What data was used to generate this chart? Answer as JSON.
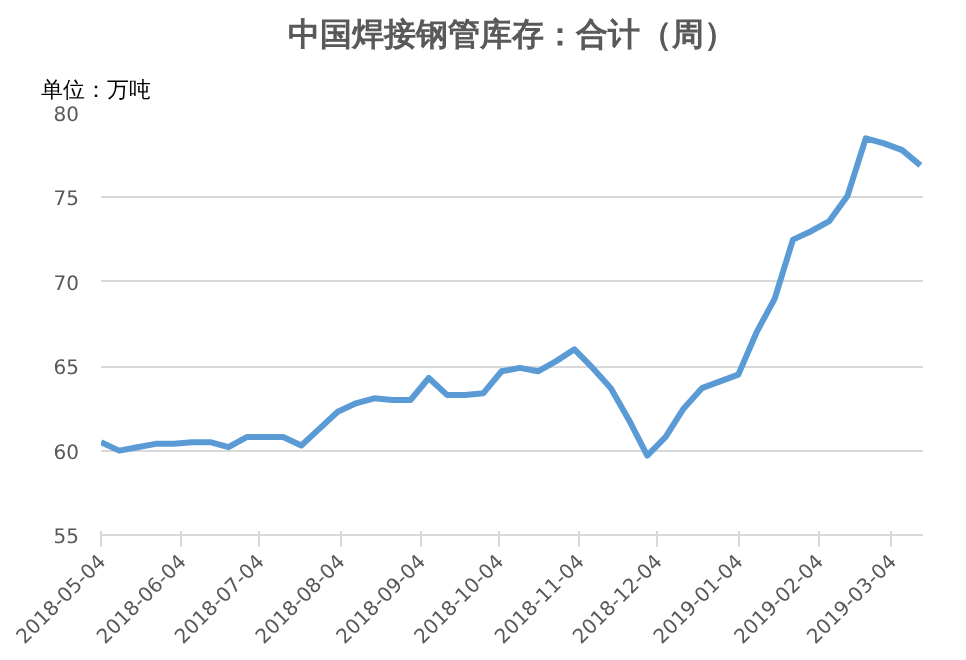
{
  "chart_data": {
    "type": "line",
    "title": "中国焊接钢管库存：合计（周）",
    "annotations": [
      "单位：万吨"
    ],
    "x": [
      "2018-05-04",
      "2018-05-11",
      "2018-05-18",
      "2018-05-25",
      "2018-06-01",
      "2018-06-08",
      "2018-06-15",
      "2018-06-22",
      "2018-06-29",
      "2018-07-06",
      "2018-07-13",
      "2018-07-20",
      "2018-07-27",
      "2018-08-03",
      "2018-08-10",
      "2018-08-17",
      "2018-08-24",
      "2018-08-31",
      "2018-09-07",
      "2018-09-14",
      "2018-09-21",
      "2018-09-28",
      "2018-10-05",
      "2018-10-12",
      "2018-10-19",
      "2018-10-26",
      "2018-11-02",
      "2018-11-09",
      "2018-11-16",
      "2018-11-23",
      "2018-11-30",
      "2018-12-07",
      "2018-12-14",
      "2018-12-21",
      "2018-12-28",
      "2019-01-04",
      "2019-01-11",
      "2019-01-18",
      "2019-01-25",
      "2019-02-01",
      "2019-02-08",
      "2019-02-15",
      "2019-02-22",
      "2019-03-01",
      "2019-03-08",
      "2019-03-15"
    ],
    "series": [
      {
        "color": "#5b9bd5",
        "values": [
          60.5,
          60.0,
          60.2,
          60.4,
          60.4,
          60.5,
          60.5,
          60.2,
          60.8,
          60.8,
          60.8,
          60.3,
          61.3,
          62.3,
          62.8,
          63.1,
          63.0,
          63.0,
          64.3,
          63.3,
          63.3,
          63.4,
          64.7,
          64.9,
          64.7,
          65.3,
          66.0,
          64.9,
          63.7,
          61.8,
          59.7,
          60.8,
          62.5,
          63.7,
          64.1,
          64.5,
          67.0,
          69.0,
          72.5,
          73.0,
          73.6,
          75.1,
          78.5,
          78.2,
          77.8,
          76.9
        ]
      }
    ],
    "xlim": [
      "2018-05-04",
      "2019-03-16"
    ],
    "xticks": [
      "2018-05-04",
      "2018-06-04",
      "2018-07-04",
      "2018-08-04",
      "2018-09-04",
      "2018-10-04",
      "2018-11-04",
      "2018-12-04",
      "2019-01-04",
      "2019-02-04",
      "2019-03-04"
    ],
    "ylim": [
      55,
      80
    ],
    "yticks": [
      55,
      60,
      65,
      70,
      75,
      80
    ],
    "grid": "y",
    "marker": "none",
    "line_style": "solid"
  }
}
